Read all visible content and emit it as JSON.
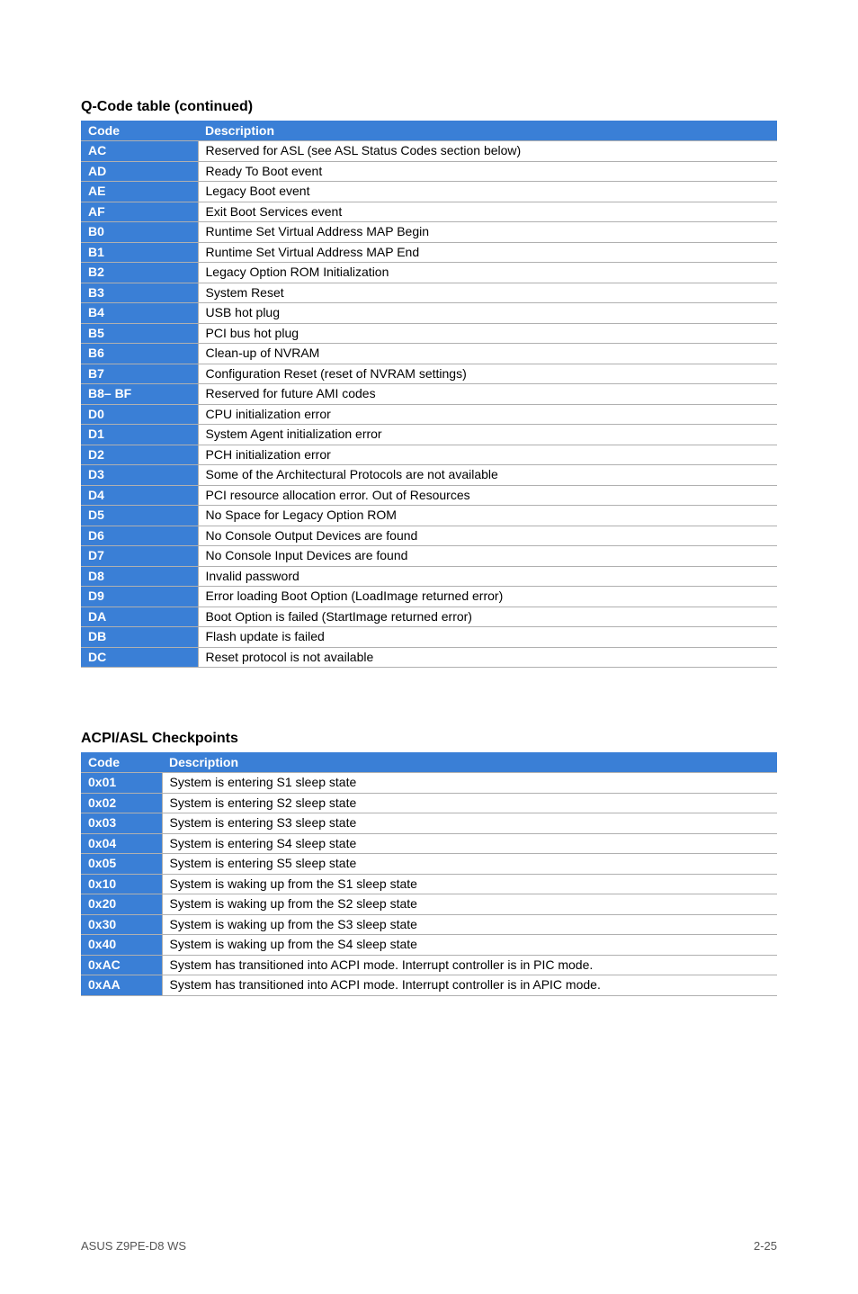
{
  "section1": {
    "title": "Q-Code table (continued)",
    "headers": {
      "code": "Code",
      "desc": "Description"
    },
    "rows": [
      {
        "code": "AC",
        "desc": "Reserved for ASL (see ASL Status Codes section below)"
      },
      {
        "code": "AD",
        "desc": "Ready To Boot event"
      },
      {
        "code": "AE",
        "desc": "Legacy Boot event"
      },
      {
        "code": "AF",
        "desc": "Exit  Boot Services event"
      },
      {
        "code": "B0",
        "desc": "Runtime Set Virtual Address MAP Begin"
      },
      {
        "code": "B1",
        "desc": "Runtime Set Virtual Address MAP End"
      },
      {
        "code": "B2",
        "desc": "Legacy Option ROM Initialization"
      },
      {
        "code": "B3",
        "desc": "System Reset"
      },
      {
        "code": "B4",
        "desc": "USB hot plug"
      },
      {
        "code": "B5",
        "desc": "PCI bus hot plug"
      },
      {
        "code": "B6",
        "desc": "Clean-up of NVRAM"
      },
      {
        "code": "B7",
        "desc": "Configuration Reset (reset of NVRAM settings)"
      },
      {
        "code": "B8– BF",
        "desc": "Reserved for future AMI codes"
      },
      {
        "code": "D0",
        "desc": "CPU initialization error"
      },
      {
        "code": "D1",
        "desc": "System Agent initialization error"
      },
      {
        "code": "D2",
        "desc": "PCH initialization error"
      },
      {
        "code": "D3",
        "desc": "Some of the Architectural Protocols are not available"
      },
      {
        "code": "D4",
        "desc": "PCI resource allocation error.  Out of Resources"
      },
      {
        "code": "D5",
        "desc": "No Space for Legacy Option ROM"
      },
      {
        "code": "D6",
        "desc": "No Console Output Devices are found"
      },
      {
        "code": "D7",
        "desc": "No Console Input Devices are found"
      },
      {
        "code": "D8",
        "desc": "Invalid password"
      },
      {
        "code": "D9",
        "desc": "Error loading Boot Option (LoadImage returned error)"
      },
      {
        "code": "DA",
        "desc": "Boot Option is failed (StartImage returned error)"
      },
      {
        "code": "DB",
        "desc": "Flash update is failed"
      },
      {
        "code": "DC",
        "desc": "Reset protocol is not available"
      }
    ]
  },
  "section2": {
    "title": "ACPI/ASL Checkpoints",
    "headers": {
      "code": "Code",
      "desc": "Description"
    },
    "rows": [
      {
        "code": "0x01",
        "desc": "System is entering S1 sleep state"
      },
      {
        "code": "0x02",
        "desc": "System is entering S2 sleep state"
      },
      {
        "code": "0x03",
        "desc": "System is entering S3 sleep state"
      },
      {
        "code": "0x04",
        "desc": "System is entering S4 sleep state"
      },
      {
        "code": "0x05",
        "desc": "System is entering S5 sleep state"
      },
      {
        "code": "0x10",
        "desc": "System is waking up from the S1 sleep state"
      },
      {
        "code": "0x20",
        "desc": "System is waking up from the S2 sleep state"
      },
      {
        "code": "0x30",
        "desc": "System is waking up from the S3 sleep state"
      },
      {
        "code": "0x40",
        "desc": "System is waking up from the S4 sleep state"
      },
      {
        "code": "0xAC",
        "desc": "System has transitioned into ACPI mode. Interrupt controller is in PIC mode."
      },
      {
        "code": "0xAA",
        "desc": "System has transitioned into ACPI mode. Interrupt controller is in APIC mode."
      }
    ]
  },
  "footer": {
    "left": "ASUS Z9PE-D8 WS",
    "right": "2-25"
  },
  "colors": {
    "header_bg": "#3a7fd6",
    "header_fg": "#ffffff",
    "row_border": "#b0b0b0",
    "page_bg": "#ffffff",
    "text": "#000000",
    "footer_text": "#555555"
  }
}
